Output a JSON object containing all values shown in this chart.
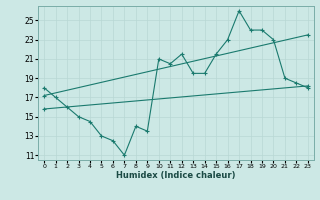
{
  "xlabel": "Humidex (Indice chaleur)",
  "bg_color": "#cce8e5",
  "line_color": "#1a7a6e",
  "grid_color": "#b8d8d4",
  "xlim": [
    -0.5,
    23.5
  ],
  "ylim": [
    10.5,
    26.5
  ],
  "yticks": [
    11,
    13,
    15,
    17,
    19,
    21,
    23,
    25
  ],
  "xticks": [
    0,
    1,
    2,
    3,
    4,
    5,
    6,
    7,
    8,
    9,
    10,
    11,
    12,
    13,
    14,
    15,
    16,
    17,
    18,
    19,
    20,
    21,
    22,
    23
  ],
  "series1_x": [
    0,
    1,
    2,
    3,
    4,
    5,
    6,
    7,
    8,
    9,
    10,
    11,
    12,
    13,
    14,
    15,
    16,
    17,
    18,
    19,
    20,
    21,
    22,
    23
  ],
  "series1_y": [
    18.0,
    17.0,
    16.0,
    15.0,
    14.5,
    13.0,
    12.5,
    11.0,
    14.0,
    13.5,
    21.0,
    20.5,
    21.5,
    19.5,
    19.5,
    21.5,
    23.0,
    26.0,
    24.0,
    24.0,
    23.0,
    19.0,
    18.5,
    18.0
  ],
  "series2_x": [
    0,
    23
  ],
  "series2_y": [
    17.2,
    23.5
  ],
  "series3_x": [
    0,
    23
  ],
  "series3_y": [
    15.8,
    18.2
  ]
}
